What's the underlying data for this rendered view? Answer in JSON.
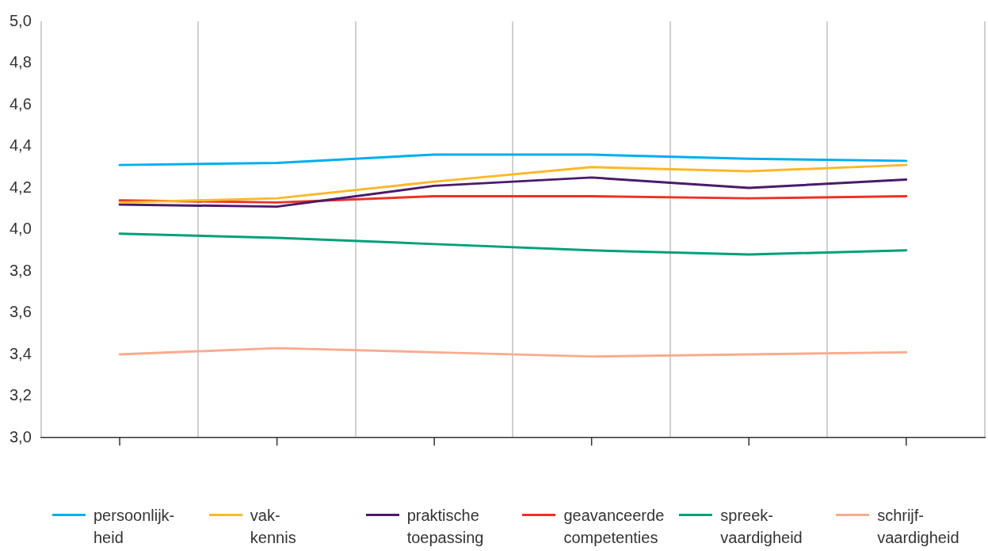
{
  "chart_data": {
    "type": "line",
    "categories": [
      null,
      null,
      null,
      null,
      null,
      null
    ],
    "series": [
      {
        "name": "persoonlijk-\nheid",
        "color": "#00aeef",
        "values": [
          4.31,
          4.32,
          4.36,
          4.36,
          4.34,
          4.33
        ]
      },
      {
        "name": "vak-\nkennis",
        "color": "#fdb827",
        "values": [
          4.13,
          4.15,
          4.23,
          4.3,
          4.28,
          4.31
        ]
      },
      {
        "name": "praktische\ntoepassing",
        "color": "#4b1a6b",
        "values": [
          4.12,
          4.11,
          4.21,
          4.25,
          4.2,
          4.24
        ]
      },
      {
        "name": "geavanceerde\ncompetenties",
        "color": "#ee3124",
        "values": [
          4.14,
          4.13,
          4.16,
          4.16,
          4.15,
          4.16
        ]
      },
      {
        "name": "spreek-\nvaardigheid",
        "color": "#00a07a",
        "values": [
          3.98,
          3.96,
          3.93,
          3.9,
          3.88,
          3.9
        ]
      },
      {
        "name": "schrijf-\nvaardigheid",
        "color": "#f9ab8f",
        "values": [
          3.4,
          3.43,
          3.41,
          3.39,
          3.4,
          3.41
        ]
      }
    ],
    "ylim": [
      3,
      5
    ],
    "yticks": [
      {
        "value": 3,
        "label": "3,0"
      },
      {
        "value": 3.2,
        "label": "3,2"
      },
      {
        "value": 3.4,
        "label": "3,4"
      },
      {
        "value": 3.6,
        "label": "3,6"
      },
      {
        "value": 3.8,
        "label": "3,8"
      },
      {
        "value": 4,
        "label": "4,0"
      },
      {
        "value": 4.2,
        "label": "4,2"
      },
      {
        "value": 4.4,
        "label": "4,4"
      },
      {
        "value": 4.6,
        "label": "4,6"
      },
      {
        "value": 4.8,
        "label": "4,8"
      },
      {
        "value": 5,
        "label": "5,0"
      }
    ],
    "grid": "x",
    "legend": "bottom",
    "marker": "none",
    "line_style": "solid"
  }
}
